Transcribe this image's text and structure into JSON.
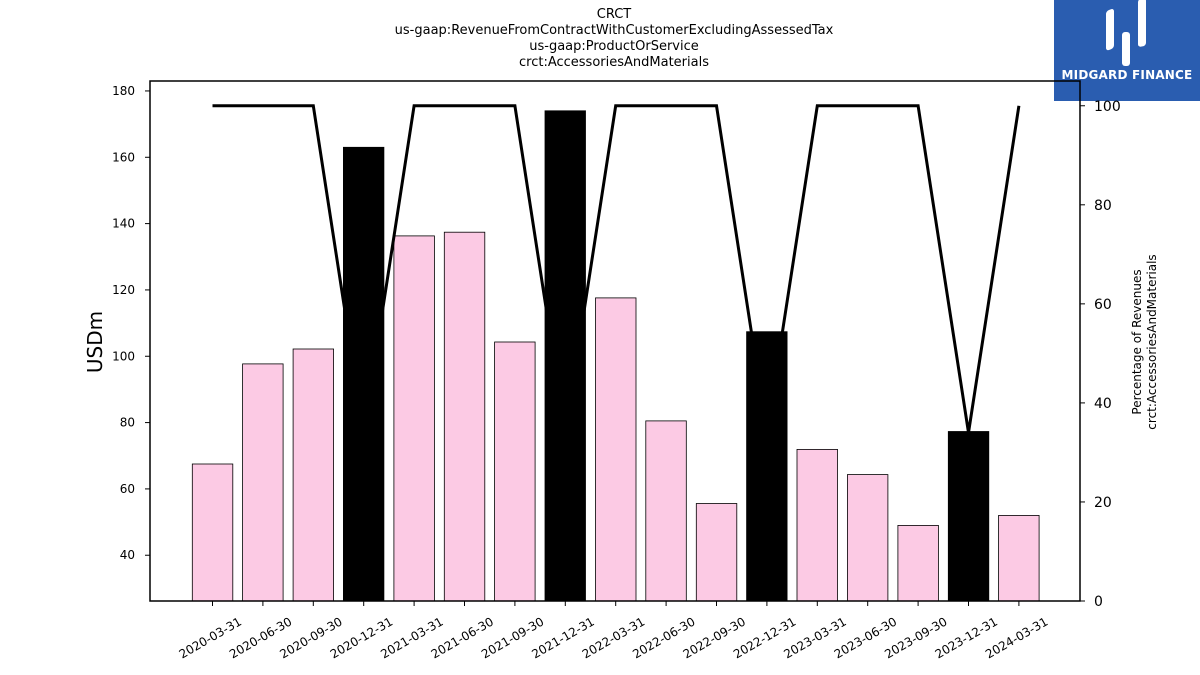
{
  "header": {
    "lines": [
      "CRCT",
      "us-gaap:RevenueFromContractWithCustomerExcludingAssessedTax",
      "us-gaap:ProductOrService",
      "crct:AccessoriesAndMaterials"
    ]
  },
  "logo": {
    "text": "MIDGARD FINANCE",
    "bg_color": "#2a5db0",
    "text_color": "#ffffff"
  },
  "chart_data": {
    "type": "bar",
    "categories": [
      "2020-03-31",
      "2020-06-30",
      "2020-09-30",
      "2020-12-31",
      "2021-03-31",
      "2021-06-30",
      "2021-09-30",
      "2021-12-31",
      "2022-03-31",
      "2022-06-30",
      "2022-09-30",
      "2022-12-31",
      "2023-03-31",
      "2023-06-30",
      "2023-09-30",
      "2023-12-31",
      "2024-03-31"
    ],
    "series": [
      {
        "type": "bar",
        "axis": "left",
        "values": [
          67.5,
          97.7,
          102.2,
          163.0,
          136.3,
          137.4,
          104.3,
          174.0,
          117.6,
          80.5,
          55.6,
          107.4,
          71.9,
          64.3,
          49.0,
          77.3,
          52.0
        ],
        "highlight": [
          false,
          false,
          false,
          true,
          false,
          false,
          false,
          true,
          false,
          false,
          false,
          true,
          false,
          false,
          false,
          true,
          false
        ]
      },
      {
        "type": "line",
        "axis": "right",
        "values": [
          100,
          100,
          100,
          34,
          100,
          100,
          100,
          34,
          100,
          100,
          100,
          34,
          100,
          100,
          100,
          34,
          100
        ]
      }
    ],
    "ylabel": "USDm",
    "y2label_lines": [
      "Percentage of Revenues",
      "crct:AccessoriesAndMaterials"
    ],
    "ylim": [
      26.2,
      183
    ],
    "y2lim": [
      0,
      105
    ],
    "yticks": [
      40,
      60,
      80,
      100,
      120,
      140,
      160,
      180
    ],
    "y2ticks": [
      0,
      20,
      40,
      60,
      80,
      100
    ],
    "bar_color": "#fccae4",
    "highlight_color": "#000000",
    "line_color": "#000000",
    "grid": false
  }
}
